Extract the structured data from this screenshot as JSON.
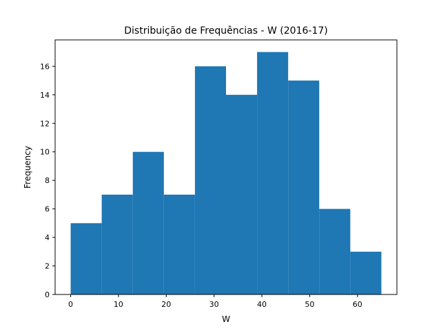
{
  "chart_data": {
    "type": "bar",
    "title": "Distribuição de Frequências - W (2016-17)",
    "xlabel": "W",
    "ylabel": "Frequency",
    "bin_edges": [
      0,
      6.5,
      13,
      19.5,
      26,
      32.5,
      39,
      45.5,
      52,
      58.5,
      65
    ],
    "values": [
      5,
      7,
      10,
      7,
      16,
      14,
      17,
      15,
      6,
      3
    ],
    "xlim": [
      -3.25,
      68.25
    ],
    "ylim": [
      0,
      17.85
    ],
    "xticks": [
      0,
      10,
      20,
      30,
      40,
      50,
      60
    ],
    "yticks": [
      0,
      2,
      4,
      6,
      8,
      10,
      12,
      14,
      16
    ],
    "grid": false,
    "colors": {
      "bar": "#1f77b4",
      "axes": "#000000"
    }
  }
}
